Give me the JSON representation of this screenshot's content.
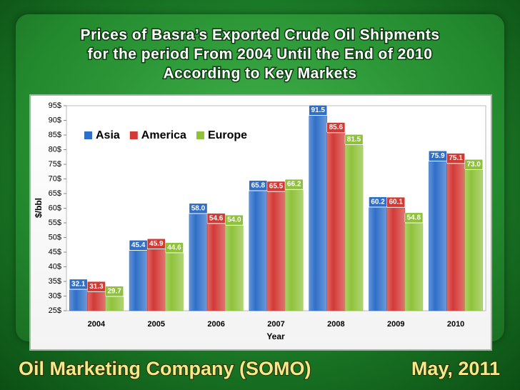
{
  "chart_data": {
    "type": "bar",
    "title": [
      "Prices of Basra’s Exported Crude Oil Shipments",
      "for the period From 2004 Until the End of 2010",
      "According to Key Markets"
    ],
    "xlabel": "Year",
    "ylabel": "$/bbl",
    "categories": [
      "2004",
      "2005",
      "2006",
      "2007",
      "2008",
      "2009",
      "2010"
    ],
    "series": [
      {
        "name": "Asia",
        "color": "#2f6fc8",
        "values": [
          32.1,
          45.4,
          58.0,
          65.8,
          91.5,
          60.2,
          75.9
        ],
        "value_labels": [
          "32.1",
          "45.4",
          "58.0",
          "65.8",
          "91.5",
          "60.2",
          "75.9"
        ]
      },
      {
        "name": "America",
        "color": "#d23a36",
        "values": [
          31.3,
          45.9,
          54.6,
          65.5,
          85.6,
          60.1,
          75.1
        ],
        "value_labels": [
          "31.3",
          "45.9",
          "54.6",
          "65.5",
          "85.6",
          "60.1",
          "75.1"
        ]
      },
      {
        "name": "Europe",
        "color": "#8fc23a",
        "values": [
          29.7,
          44.6,
          54.0,
          66.2,
          81.5,
          54.8,
          73.0
        ],
        "value_labels": [
          "29.7",
          "44.6",
          "54.0",
          "66.2",
          "81.5",
          "54.8",
          "73.0"
        ]
      }
    ],
    "ylim": [
      25,
      95
    ],
    "yticks": [
      {
        "value": 25,
        "label": "25$"
      },
      {
        "value": 30,
        "label": "30$"
      },
      {
        "value": 35,
        "label": "35$"
      },
      {
        "value": 40,
        "label": "40$"
      },
      {
        "value": 45,
        "label": "45$"
      },
      {
        "value": 50,
        "label": "50$"
      },
      {
        "value": 55,
        "label": "55$"
      },
      {
        "value": 60,
        "label": "60$"
      },
      {
        "value": 65,
        "label": "65$"
      },
      {
        "value": 70,
        "label": "70$"
      },
      {
        "value": 75,
        "label": "75$"
      },
      {
        "value": 80,
        "label": "80$"
      },
      {
        "value": 85,
        "label": "85$"
      },
      {
        "value": 90,
        "label": "90$"
      },
      {
        "value": 95,
        "label": "95$"
      }
    ],
    "grid": false,
    "legend": "top-left"
  },
  "footer": {
    "left": "Oil Marketing Company (SOMO)",
    "right": "May, 2011"
  }
}
